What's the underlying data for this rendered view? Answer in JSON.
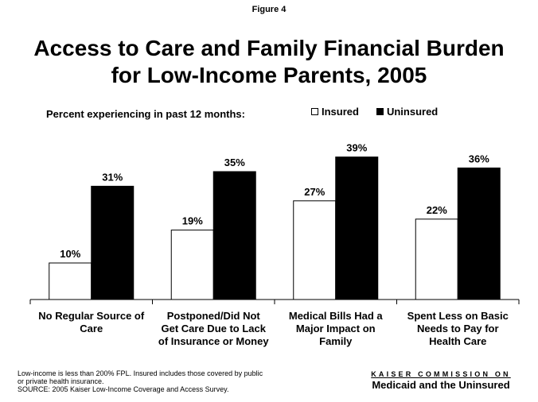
{
  "figure_label": "Figure 4",
  "title_line1": "Access to Care and Family Financial Burden",
  "title_line2": "for Low-Income Parents, 2005",
  "footnote": {
    "line1": "Low-income is less than 200% FPL.  Insured includes those covered by public",
    "line2": "or private health insurance.",
    "line3": "SOURCE: 2005 Kaiser Low-Income Coverage and Access Survey."
  },
  "brand": {
    "top": "KAISER COMMISSION ON",
    "bottom": "Medicaid and the Uninsured"
  },
  "colors": {
    "insured": "#ffffff",
    "uninsured": "#000000",
    "outline": "#000000"
  },
  "chart_data": {
    "type": "bar",
    "subtitle": "Percent experiencing in past 12 months:",
    "categories": [
      [
        "No Regular Source of",
        "Care"
      ],
      [
        "Postponed/Did Not",
        "Get Care Due to Lack",
        "of Insurance or Money"
      ],
      [
        "Medical Bills Had a",
        "Major Impact on",
        "Family"
      ],
      [
        "Spent Less on Basic",
        "Needs to Pay for",
        "Health Care"
      ]
    ],
    "series": [
      {
        "name": "Insured",
        "values": [
          10,
          19,
          27,
          22
        ],
        "labels": [
          "10%",
          "19%",
          "27%",
          "22%"
        ]
      },
      {
        "name": "Uninsured",
        "values": [
          31,
          35,
          39,
          36
        ],
        "labels": [
          "31%",
          "35%",
          "39%",
          "36%"
        ]
      }
    ],
    "ylim": [
      0,
      40
    ],
    "legend_position": "top-right",
    "grid": false
  }
}
